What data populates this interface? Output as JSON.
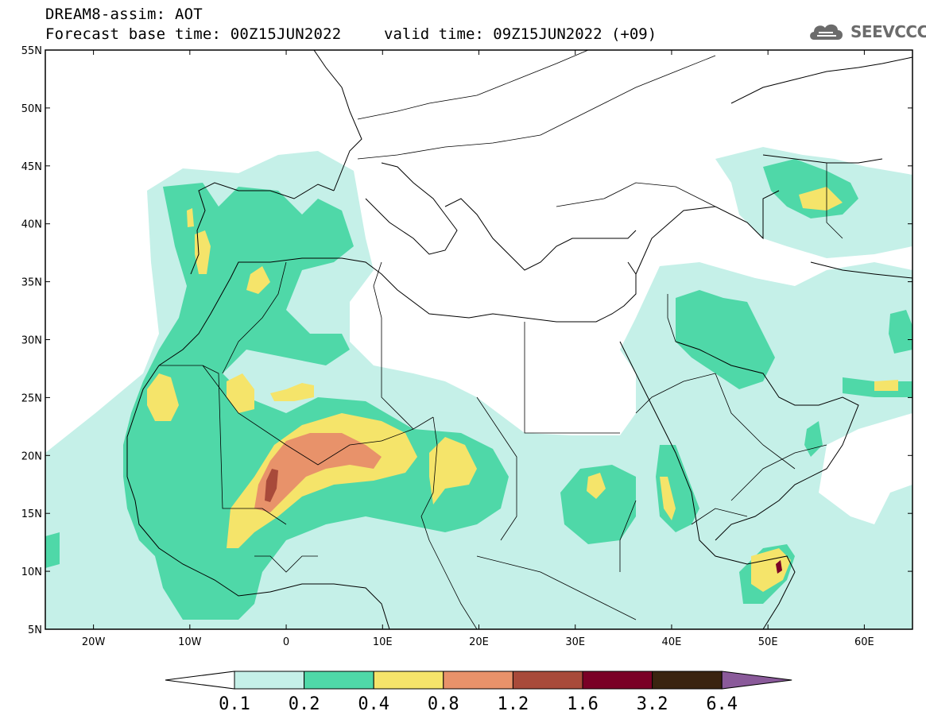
{
  "header": {
    "title": "DREAM8-assim: AOT",
    "base_time": "Forecast base time: 00Z15JUN2022",
    "valid_time": "valid time: 09Z15JUN2022 (+09)"
  },
  "logo": {
    "name": "cloud-icon",
    "text": "SEEVCCC"
  },
  "map": {
    "lon_range": [
      -25,
      65
    ],
    "lat_range": [
      5,
      55
    ],
    "lat_ticks": [
      "5N",
      "10N",
      "15N",
      "20N",
      "25N",
      "30N",
      "35N",
      "40N",
      "45N",
      "50N",
      "55N"
    ],
    "lon_ticks": [
      "20W",
      "10W",
      "0",
      "10E",
      "20E",
      "30E",
      "40E",
      "50E",
      "60E"
    ]
  },
  "colorbar": {
    "labels": [
      "0.1",
      "0.2",
      "0.4",
      "0.8",
      "1.2",
      "1.6",
      "3.2",
      "6.4"
    ],
    "colors": [
      "#ffffff",
      "#c5f0e8",
      "#4fd8a8",
      "#f5e46a",
      "#e8926a",
      "#a84a3a",
      "#7a0026",
      "#3a2410",
      "#8a5a9a"
    ]
  }
}
